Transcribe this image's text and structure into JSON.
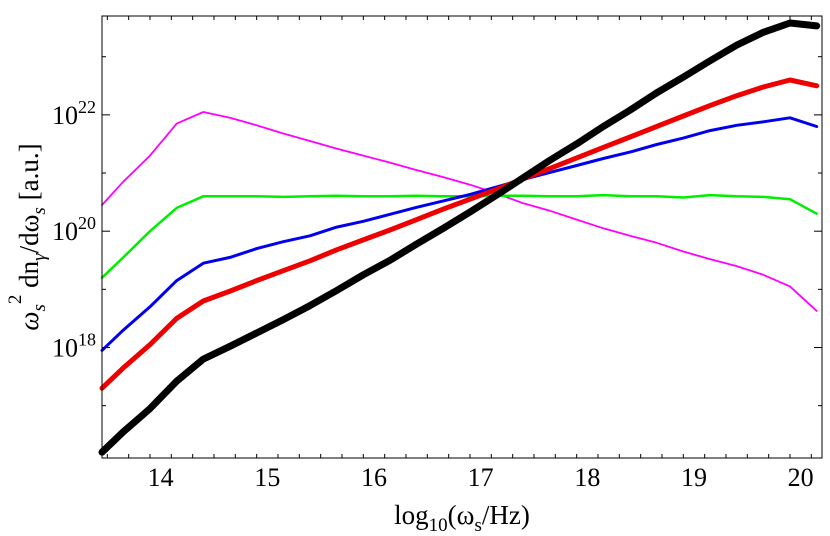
{
  "chart_data": {
    "type": "line",
    "xlabel": "log10(ωs/Hz)",
    "ylabel": "ωs² dnγ/dωs [a.u.]",
    "xlim": [
      13.45,
      20.2
    ],
    "ylim": [
      16.1,
      23.7
    ],
    "y_scale": "log10",
    "grid": false,
    "legend": "none",
    "x_ticks": [
      14,
      15,
      16,
      17,
      18,
      19,
      20
    ],
    "x_tick_labels": [
      "14",
      "15",
      "16",
      "17",
      "18",
      "19",
      "20"
    ],
    "y_ticks": [
      18,
      20,
      22
    ],
    "y_tick_labels": [
      {
        "base": "10",
        "exp": "18"
      },
      {
        "base": "10",
        "exp": "20"
      },
      {
        "base": "10",
        "exp": "22"
      }
    ],
    "series": [
      {
        "color": "#ff00ff",
        "stroke_width": 1.8,
        "x": [
          13.45,
          13.65,
          13.9,
          14.15,
          14.4,
          14.65,
          14.9,
          15.15,
          15.4,
          15.65,
          15.9,
          16.15,
          16.4,
          16.65,
          16.9,
          17.15,
          17.4,
          17.65,
          17.9,
          18.15,
          18.4,
          18.65,
          18.9,
          19.15,
          19.4,
          19.65,
          19.9,
          20.15
        ],
        "y": [
          20.45,
          20.85,
          21.3,
          21.85,
          22.05,
          21.95,
          21.82,
          21.68,
          21.55,
          21.42,
          21.3,
          21.18,
          21.05,
          20.93,
          20.8,
          20.65,
          20.48,
          20.35,
          20.2,
          20.05,
          19.92,
          19.8,
          19.65,
          19.52,
          19.4,
          19.25,
          19.05,
          18.63
        ]
      },
      {
        "color": "#00ee00",
        "stroke_width": 2.5,
        "x": [
          13.45,
          13.65,
          13.9,
          14.15,
          14.4,
          14.65,
          14.9,
          15.15,
          15.4,
          15.65,
          15.9,
          16.15,
          16.4,
          16.65,
          16.9,
          17.15,
          17.4,
          17.65,
          17.9,
          18.15,
          18.4,
          18.65,
          18.9,
          19.15,
          19.4,
          19.65,
          19.9,
          20.15
        ],
        "y": [
          19.2,
          19.55,
          20.0,
          20.4,
          20.6,
          20.6,
          20.6,
          20.59,
          20.6,
          20.61,
          20.6,
          20.6,
          20.61,
          20.6,
          20.6,
          20.61,
          20.61,
          20.6,
          20.6,
          20.62,
          20.6,
          20.6,
          20.58,
          20.62,
          20.6,
          20.59,
          20.55,
          20.3
        ]
      },
      {
        "color": "#0000ee",
        "stroke_width": 3,
        "x": [
          13.45,
          13.65,
          13.9,
          14.15,
          14.4,
          14.65,
          14.9,
          15.15,
          15.4,
          15.65,
          15.9,
          16.15,
          16.4,
          16.65,
          16.9,
          17.15,
          17.4,
          17.65,
          17.9,
          18.15,
          18.4,
          18.65,
          18.9,
          19.15,
          19.4,
          19.65,
          19.9,
          20.15
        ],
        "y": [
          17.95,
          18.3,
          18.7,
          19.15,
          19.45,
          19.55,
          19.7,
          19.82,
          19.92,
          20.07,
          20.17,
          20.29,
          20.41,
          20.52,
          20.63,
          20.76,
          20.89,
          21.01,
          21.13,
          21.25,
          21.36,
          21.49,
          21.6,
          21.73,
          21.82,
          21.88,
          21.95,
          21.8
        ]
      },
      {
        "color": "#ee0000",
        "stroke_width": 5,
        "x": [
          13.45,
          13.65,
          13.9,
          14.15,
          14.4,
          14.65,
          14.9,
          15.15,
          15.4,
          15.65,
          15.9,
          16.15,
          16.4,
          16.65,
          16.9,
          17.15,
          17.4,
          17.65,
          17.9,
          18.15,
          18.4,
          18.65,
          18.9,
          19.15,
          19.4,
          19.65,
          19.9,
          20.15
        ],
        "y": [
          17.3,
          17.65,
          18.05,
          18.5,
          18.8,
          18.97,
          19.15,
          19.32,
          19.49,
          19.68,
          19.85,
          20.02,
          20.2,
          20.38,
          20.55,
          20.72,
          20.9,
          21.08,
          21.26,
          21.44,
          21.62,
          21.8,
          21.98,
          22.16,
          22.33,
          22.48,
          22.6,
          22.5
        ]
      },
      {
        "color": "#000000",
        "stroke_width": 7,
        "x": [
          13.45,
          13.65,
          13.9,
          14.15,
          14.4,
          14.65,
          14.9,
          15.15,
          15.4,
          15.65,
          15.9,
          16.15,
          16.4,
          16.65,
          16.9,
          17.15,
          17.4,
          17.65,
          17.9,
          18.15,
          18.4,
          18.65,
          18.9,
          19.15,
          19.4,
          19.65,
          19.9,
          20.15
        ],
        "y": [
          16.2,
          16.55,
          16.95,
          17.42,
          17.8,
          18.02,
          18.25,
          18.48,
          18.72,
          18.98,
          19.25,
          19.5,
          19.78,
          20.05,
          20.33,
          20.62,
          20.92,
          21.22,
          21.5,
          21.8,
          22.08,
          22.38,
          22.65,
          22.93,
          23.2,
          23.42,
          23.58,
          23.53
        ]
      }
    ]
  }
}
